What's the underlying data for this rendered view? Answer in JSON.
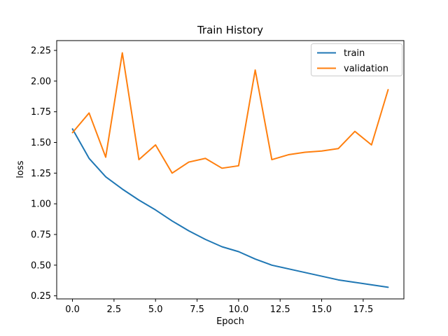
{
  "chart_data": {
    "type": "line",
    "title": "Train History",
    "xlabel": "Epoch",
    "ylabel": "loss",
    "x": [
      0,
      1,
      2,
      3,
      4,
      5,
      6,
      7,
      8,
      9,
      10,
      11,
      12,
      13,
      14,
      15,
      16,
      17,
      18,
      19
    ],
    "series": [
      {
        "name": "train",
        "color": "#1f77b4",
        "values": [
          1.61,
          1.37,
          1.22,
          1.12,
          1.03,
          0.95,
          0.86,
          0.78,
          0.71,
          0.65,
          0.61,
          0.55,
          0.5,
          0.47,
          0.44,
          0.41,
          0.38,
          0.36,
          0.34,
          0.32
        ]
      },
      {
        "name": "validation",
        "color": "#ff7f0e",
        "values": [
          1.58,
          1.74,
          1.38,
          2.23,
          1.36,
          1.48,
          1.25,
          1.34,
          1.37,
          1.29,
          1.31,
          2.09,
          1.36,
          1.4,
          1.42,
          1.43,
          1.45,
          1.59,
          1.48,
          1.93
        ]
      }
    ],
    "xlim": [
      -0.95,
      19.95
    ],
    "ylim": [
      0.225,
      2.33
    ],
    "x_ticks": [
      0.0,
      2.5,
      5.0,
      7.5,
      10.0,
      12.5,
      15.0,
      17.5
    ],
    "x_tick_labels": [
      "0.0",
      "2.5",
      "5.0",
      "7.5",
      "10.0",
      "12.5",
      "15.0",
      "17.5"
    ],
    "y_ticks": [
      0.25,
      0.5,
      0.75,
      1.0,
      1.25,
      1.5,
      1.75,
      2.0,
      2.25
    ],
    "y_tick_labels": [
      "0.25",
      "0.50",
      "0.75",
      "1.00",
      "1.25",
      "1.50",
      "1.75",
      "2.00",
      "2.25"
    ],
    "grid": false,
    "legend": {
      "position": "upper right",
      "entries": [
        "train",
        "validation"
      ]
    }
  }
}
